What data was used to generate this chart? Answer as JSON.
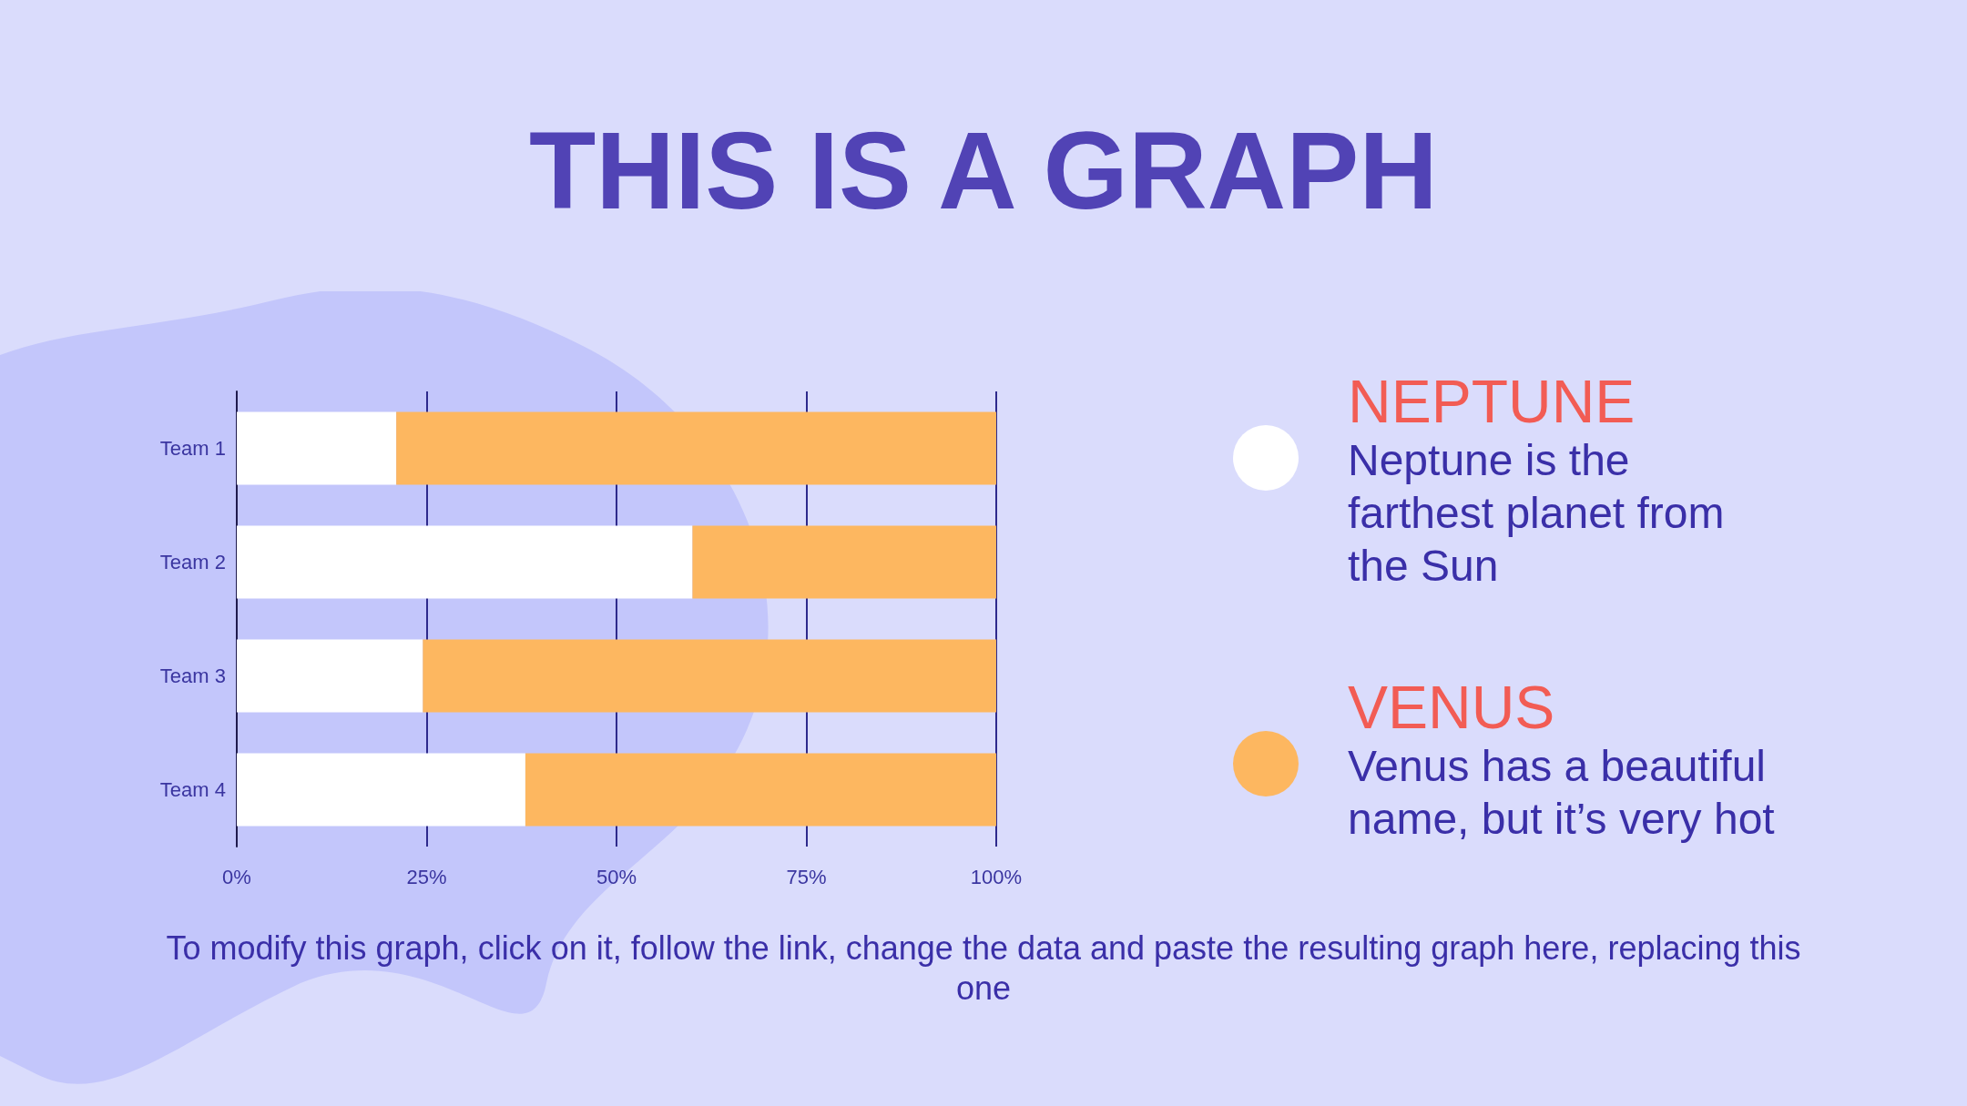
{
  "chart_data": {
    "type": "bar",
    "title": "THIS IS A GRAPH",
    "orientation": "horizontal",
    "stacked": true,
    "categories": [
      "Team 1",
      "Team 2",
      "Team 3",
      "Team 4"
    ],
    "series": [
      {
        "name": "NEPTUNE",
        "color": "#ffffff",
        "values": [
          21,
          60,
          24.5,
          38
        ]
      },
      {
        "name": "VENUS",
        "color": "#fdb760",
        "values": [
          79,
          40,
          75.5,
          62
        ]
      }
    ],
    "xlim": [
      0,
      100
    ],
    "xticks": [
      {
        "value": 0,
        "label": "0%"
      },
      {
        "value": 25,
        "label": "25%"
      },
      {
        "value": 50,
        "label": "50%"
      },
      {
        "value": 75,
        "label": "75%"
      },
      {
        "value": 100,
        "label": "100%"
      }
    ],
    "grid": "x",
    "legend": "right",
    "annotations": [
      "Neptune is the farthest planet from the Sun",
      "Venus has a beautiful name, but it’s very hot",
      "To modify this graph, click on it, follow the link, change the data and paste the resulting graph here, replacing this one"
    ]
  }
}
